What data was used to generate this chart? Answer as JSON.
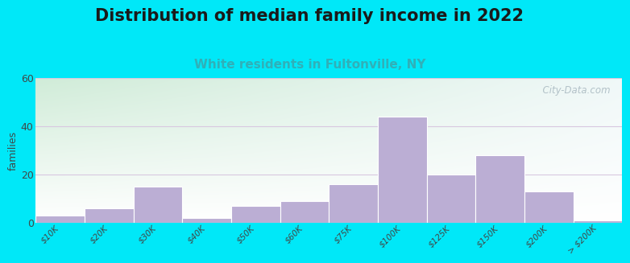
{
  "title": "Distribution of median family income in 2022",
  "subtitle": "White residents in Fultonville, NY",
  "ylabel": "families",
  "categories": [
    "$10K",
    "$20K",
    "$30K",
    "$40K",
    "$50K",
    "$60K",
    "$75K",
    "$100K",
    "$125K",
    "$150K",
    "$200K",
    "> $200K"
  ],
  "values": [
    3,
    6,
    15,
    2,
    7,
    9,
    16,
    44,
    20,
    28,
    13,
    1
  ],
  "bar_color": "#bbaed4",
  "bar_edge_color": "#ffffff",
  "ylim": [
    0,
    60
  ],
  "yticks": [
    0,
    20,
    40,
    60
  ],
  "background_outer": "#00e8f8",
  "background_plot_topleft": "#d0ecd8",
  "background_plot_right": "#f0f8f8",
  "background_plot_bottom": "#f8ffff",
  "title_fontsize": 15,
  "subtitle_fontsize": 11,
  "subtitle_color": "#30b0b8",
  "watermark_text": "  City-Data.com",
  "watermark_color": "#a8b8c0",
  "grid_color": "#d8c8e0",
  "title_color": "#1a1a1a",
  "tick_color": "#404848",
  "ylabel_fontsize": 9,
  "tick_fontsize": 7.5
}
